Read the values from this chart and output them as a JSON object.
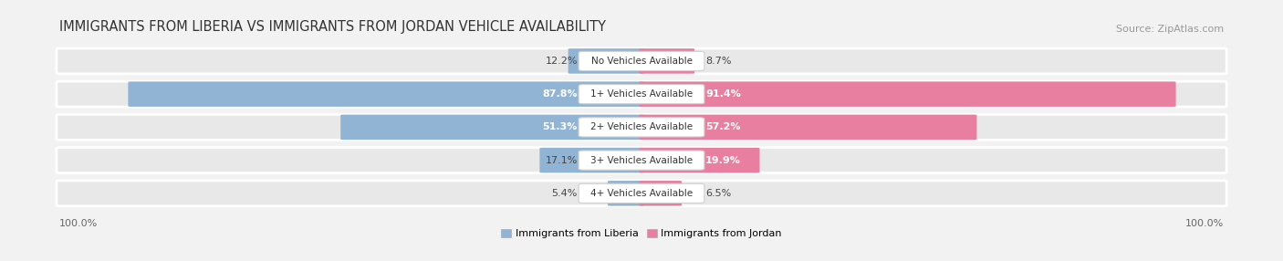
{
  "title": "IMMIGRANTS FROM LIBERIA VS IMMIGRANTS FROM JORDAN VEHICLE AVAILABILITY",
  "source": "Source: ZipAtlas.com",
  "categories": [
    "No Vehicles Available",
    "1+ Vehicles Available",
    "2+ Vehicles Available",
    "3+ Vehicles Available",
    "4+ Vehicles Available"
  ],
  "liberia_values": [
    12.2,
    87.8,
    51.3,
    17.1,
    5.4
  ],
  "jordan_values": [
    8.7,
    91.4,
    57.2,
    19.9,
    6.5
  ],
  "liberia_color": "#92b4d4",
  "jordan_color": "#e87fa0",
  "liberia_label": "Immigrants from Liberia",
  "jordan_label": "Immigrants from Jordan",
  "max_value": 100.0,
  "bg_color": "#f2f2f2",
  "row_bg_color": "#e8e8e8",
  "title_fontsize": 10.5,
  "cat_fontsize": 7.5,
  "val_fontsize": 8,
  "legend_fontsize": 8,
  "source_fontsize": 8
}
